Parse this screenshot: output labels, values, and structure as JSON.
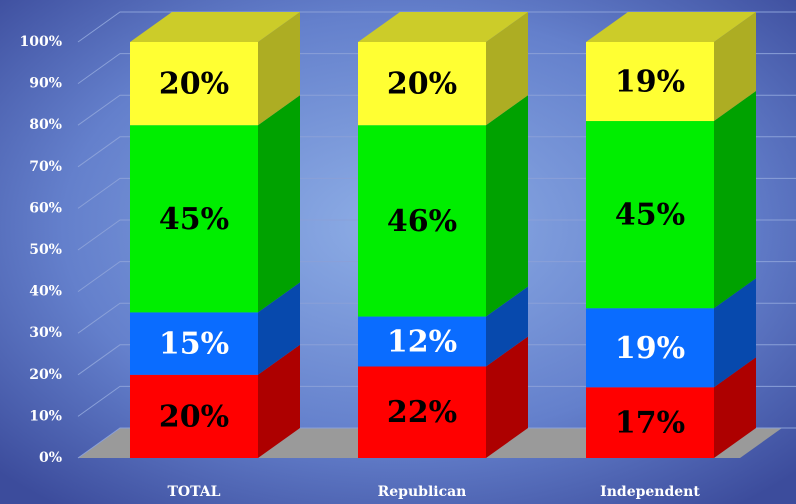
{
  "chart_data": {
    "type": "bar3d_stacked",
    "categories": [
      "TOTAL",
      "Republican",
      "Independent"
    ],
    "series": [
      {
        "color": "#ff0000",
        "values": [
          20,
          22,
          17
        ],
        "value_labels": [
          "20%",
          "22%",
          "17%"
        ]
      },
      {
        "color": "#0a6cff",
        "values": [
          15,
          12,
          19
        ],
        "value_labels": [
          "15%",
          "12%",
          "19%"
        ]
      },
      {
        "color": "#00ee00",
        "values": [
          45,
          46,
          45
        ],
        "value_labels": [
          "45%",
          "46%",
          "45%"
        ]
      },
      {
        "color": "#ffff33",
        "values": [
          20,
          20,
          19
        ],
        "value_labels": [
          "20%",
          "20%",
          "19%"
        ]
      }
    ],
    "ylim": [
      0,
      100
    ],
    "yticks": [
      {
        "value": 0,
        "label": "0%"
      },
      {
        "value": 10,
        "label": "10%"
      },
      {
        "value": 20,
        "label": "20%"
      },
      {
        "value": 30,
        "label": "30%"
      },
      {
        "value": 40,
        "label": "40%"
      },
      {
        "value": 50,
        "label": "50%"
      },
      {
        "value": 60,
        "label": "60%"
      },
      {
        "value": 70,
        "label": "70%"
      },
      {
        "value": 80,
        "label": "80%"
      },
      {
        "value": 90,
        "label": "90%"
      },
      {
        "value": 100,
        "label": "100%"
      }
    ],
    "grid": true
  }
}
